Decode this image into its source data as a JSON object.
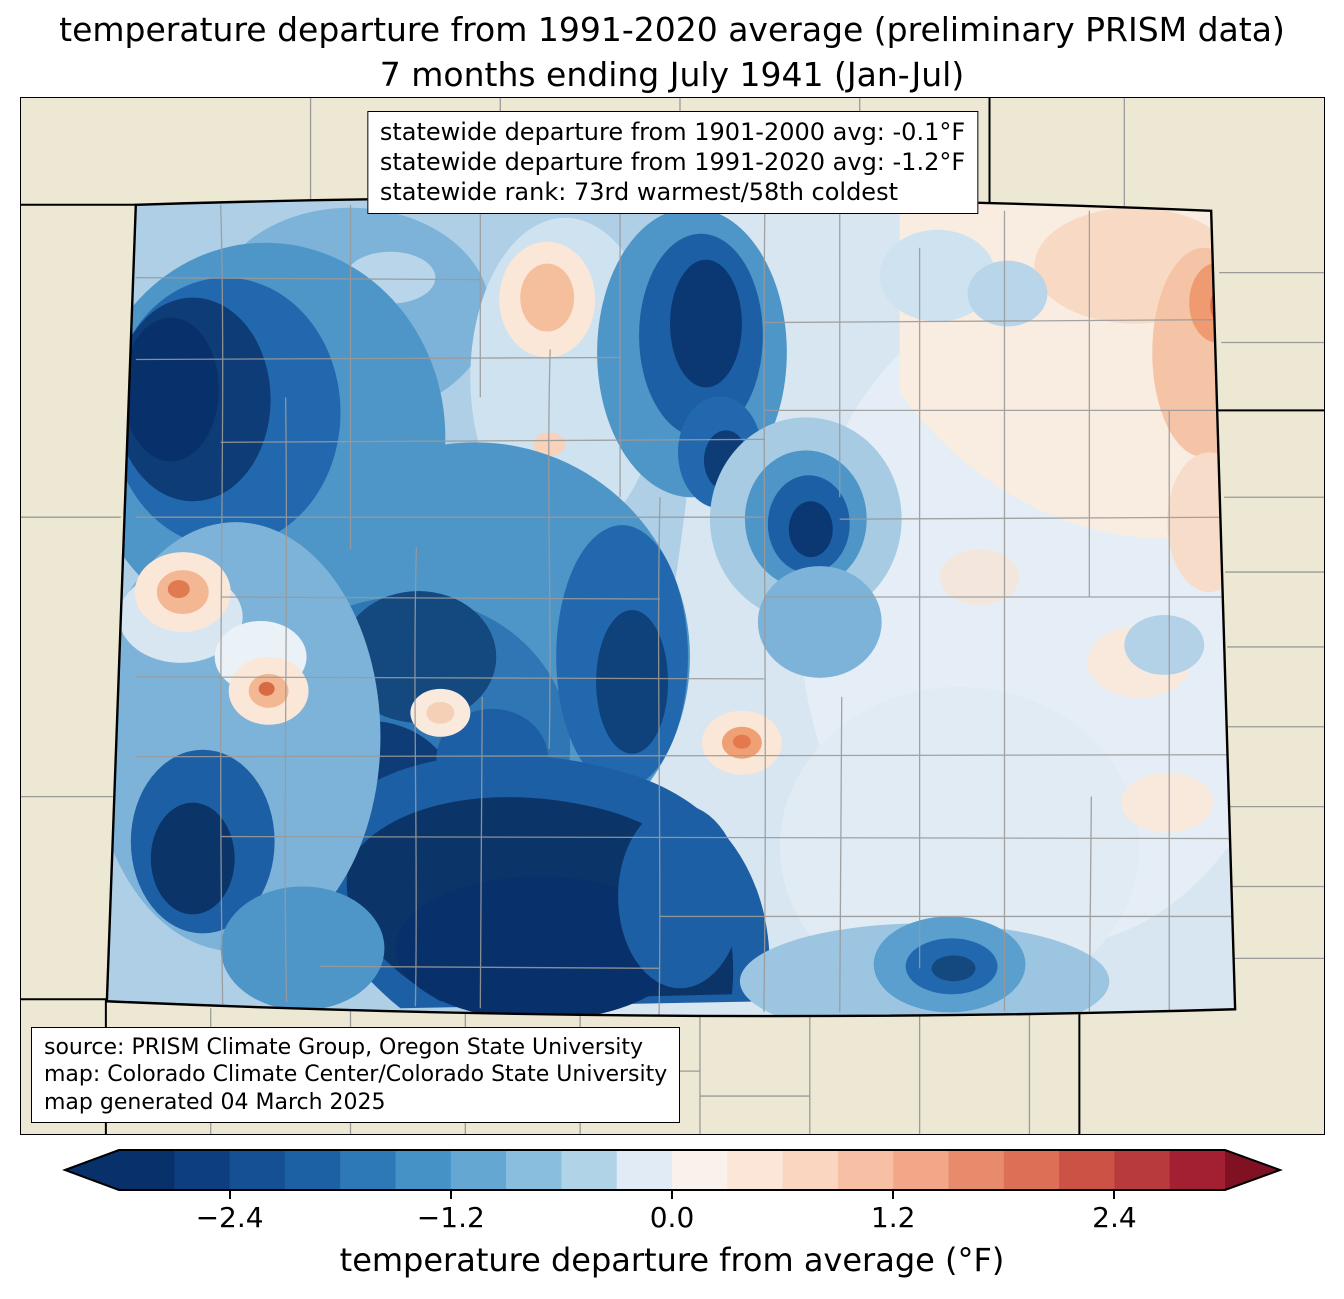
{
  "title": {
    "line1": "temperature departure from 1991-2020 average (preliminary PRISM data)",
    "line2": "7 months ending July 1941 (Jan-Jul)"
  },
  "stats_box": {
    "line1": "statewide departure from 1901-2000 avg: -0.1°F",
    "line2": "statewide departure from 1991-2020 avg: -1.2°F",
    "line3": "statewide rank: 73rd warmest/58th coldest"
  },
  "source_box": {
    "line1": "source: PRISM Climate Group, Oregon State University",
    "line2": "map: Colorado Climate Center/Colorado State University",
    "line3": "map generated 04 March 2025"
  },
  "colorbar": {
    "label": "temperature departure from average (°F)",
    "range": [
      -3.0,
      3.0
    ],
    "ticks": [
      {
        "value": -2.4,
        "label": "−2.4"
      },
      {
        "value": -1.2,
        "label": "−1.2"
      },
      {
        "value": 0.0,
        "label": "0.0"
      },
      {
        "value": 1.2,
        "label": "1.2"
      },
      {
        "value": 2.4,
        "label": "2.4"
      }
    ],
    "segment_colors": [
      "#08306b",
      "#0d3e80",
      "#155094",
      "#1d61a5",
      "#2d79b8",
      "#4592c6",
      "#64a7d2",
      "#8abede",
      "#b0d3e8",
      "#e1ebf5",
      "#f8f1ec",
      "#fbe6d8",
      "#fad5c0",
      "#f7c0a4",
      "#f1a788",
      "#e88b6c",
      "#dc6f55",
      "#cc5246",
      "#b93a3c",
      "#a32033"
    ],
    "left_arrow_color": "#08306b",
    "right_arrow_color": "#7f1123"
  },
  "map": {
    "region": "Colorado",
    "margin_color": "#ece8d4",
    "state_border_color": "#000000",
    "county_line_color": "#9a9a9a"
  }
}
